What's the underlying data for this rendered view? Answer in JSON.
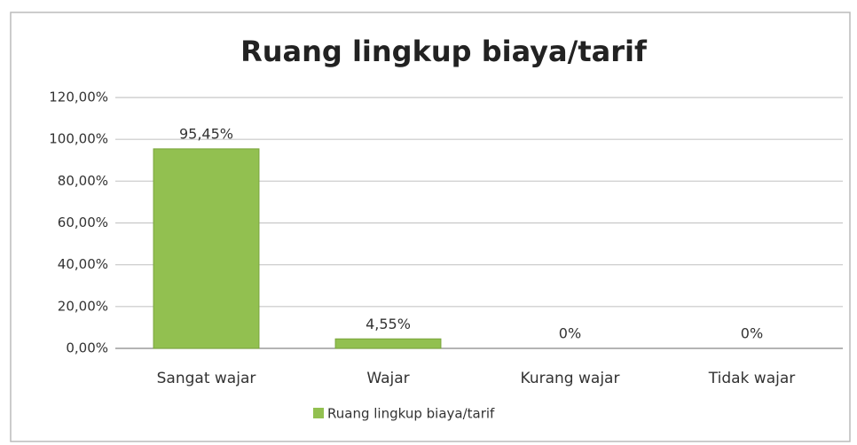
{
  "chart_data": {
    "type": "bar",
    "title": "Ruang lingkup biaya/tarif",
    "categories": [
      "Sangat wajar",
      "Wajar",
      "Kurang wajar",
      "Tidak wajar"
    ],
    "series": [
      {
        "name": "Ruang lingkup biaya/tarif",
        "color": "#92c050",
        "values": [
          95.45,
          4.55,
          0,
          0
        ],
        "value_labels": [
          "95,45%",
          "4,55%",
          "0%",
          "0%"
        ]
      }
    ],
    "ylim": [
      0,
      120
    ],
    "yticks": [
      {
        "value": 0,
        "label": "0,00%"
      },
      {
        "value": 20,
        "label": "20,00%"
      },
      {
        "value": 40,
        "label": "40,00%"
      },
      {
        "value": 60,
        "label": "60,00%"
      },
      {
        "value": 80,
        "label": "80,00%"
      },
      {
        "value": 100,
        "label": "100,00%"
      },
      {
        "value": 120,
        "label": "120,00%"
      }
    ],
    "grid": true,
    "legend": "bottom"
  }
}
